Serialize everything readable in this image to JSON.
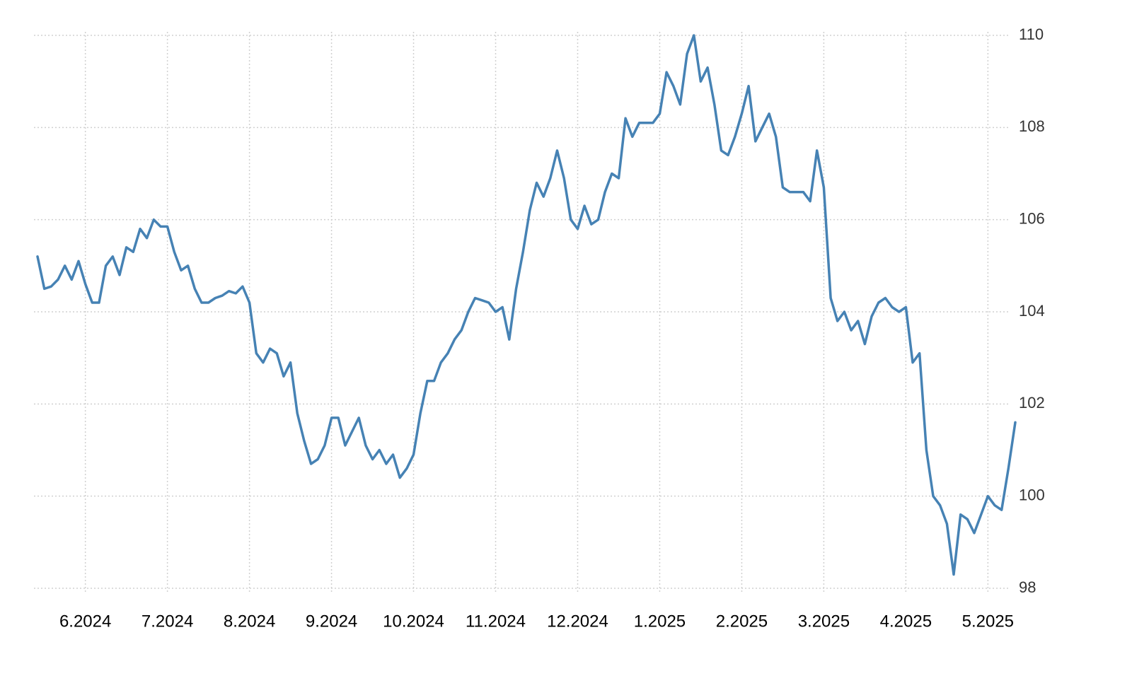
{
  "chart_data": {
    "type": "line",
    "categories": [
      null,
      null,
      null,
      null,
      null,
      null,
      null,
      "6.2024",
      null,
      null,
      null,
      null,
      null,
      null,
      null,
      null,
      null,
      null,
      null,
      "7.2024",
      null,
      null,
      null,
      null,
      null,
      null,
      null,
      null,
      null,
      null,
      null,
      "8.2024",
      null,
      null,
      null,
      null,
      null,
      null,
      null,
      null,
      null,
      null,
      null,
      "9.2024",
      null,
      null,
      null,
      null,
      null,
      null,
      null,
      null,
      null,
      null,
      null,
      "10.2024",
      null,
      null,
      null,
      null,
      null,
      null,
      null,
      null,
      null,
      null,
      null,
      "11.2024",
      null,
      null,
      null,
      null,
      null,
      null,
      null,
      null,
      null,
      null,
      null,
      "12.2024",
      null,
      null,
      null,
      null,
      null,
      null,
      null,
      null,
      null,
      null,
      null,
      "1.2025",
      null,
      null,
      null,
      null,
      null,
      null,
      null,
      null,
      null,
      null,
      null,
      "2.2025",
      null,
      null,
      null,
      null,
      null,
      null,
      null,
      null,
      null,
      null,
      null,
      "3.2025",
      null,
      null,
      null,
      null,
      null,
      null,
      null,
      null,
      null,
      null,
      null,
      "4.2025",
      null,
      null,
      null,
      null,
      null,
      null,
      null,
      null,
      null,
      null,
      null,
      "5.2025",
      null,
      null,
      null,
      null
    ],
    "values": [
      105.2,
      104.5,
      104.55,
      104.7,
      105.0,
      104.7,
      105.1,
      104.6,
      104.2,
      104.2,
      105.0,
      105.2,
      104.8,
      105.4,
      105.3,
      105.8,
      105.6,
      106.0,
      105.85,
      105.85,
      105.3,
      104.9,
      105.0,
      104.5,
      104.2,
      104.2,
      104.3,
      104.35,
      104.45,
      104.4,
      104.55,
      104.2,
      103.1,
      102.9,
      103.2,
      103.1,
      102.6,
      102.9,
      101.8,
      101.2,
      100.7,
      100.8,
      101.1,
      101.7,
      101.7,
      101.1,
      101.4,
      101.7,
      101.1,
      100.8,
      101.0,
      100.7,
      100.9,
      100.4,
      100.6,
      100.9,
      101.8,
      102.5,
      102.5,
      102.9,
      103.1,
      103.4,
      103.6,
      104.0,
      104.3,
      104.25,
      104.2,
      104.0,
      104.1,
      103.4,
      104.5,
      105.3,
      106.2,
      106.8,
      106.5,
      106.9,
      107.5,
      106.9,
      106.0,
      105.8,
      106.3,
      105.9,
      106.0,
      106.6,
      107.0,
      106.9,
      108.2,
      107.8,
      108.1,
      108.1,
      108.1,
      108.3,
      109.2,
      108.9,
      108.5,
      109.6,
      110.0,
      109.0,
      109.3,
      108.5,
      107.5,
      107.4,
      107.8,
      108.3,
      108.9,
      107.7,
      108.0,
      108.3,
      107.8,
      106.7,
      106.6,
      106.6,
      106.6,
      106.4,
      107.5,
      106.7,
      104.3,
      103.8,
      104.0,
      103.6,
      103.8,
      103.3,
      103.9,
      104.2,
      104.3,
      104.1,
      104.0,
      104.1,
      102.9,
      103.1,
      101.0,
      100.0,
      99.8,
      99.4,
      98.3,
      99.6,
      99.5,
      99.2,
      99.6,
      100.0,
      99.8,
      99.7,
      100.6,
      101.6
    ],
    "color": "#4682b4",
    "ylim": [
      98,
      110
    ],
    "yticks": [
      98,
      100,
      102,
      104,
      106,
      108,
      110
    ],
    "grid": true
  }
}
